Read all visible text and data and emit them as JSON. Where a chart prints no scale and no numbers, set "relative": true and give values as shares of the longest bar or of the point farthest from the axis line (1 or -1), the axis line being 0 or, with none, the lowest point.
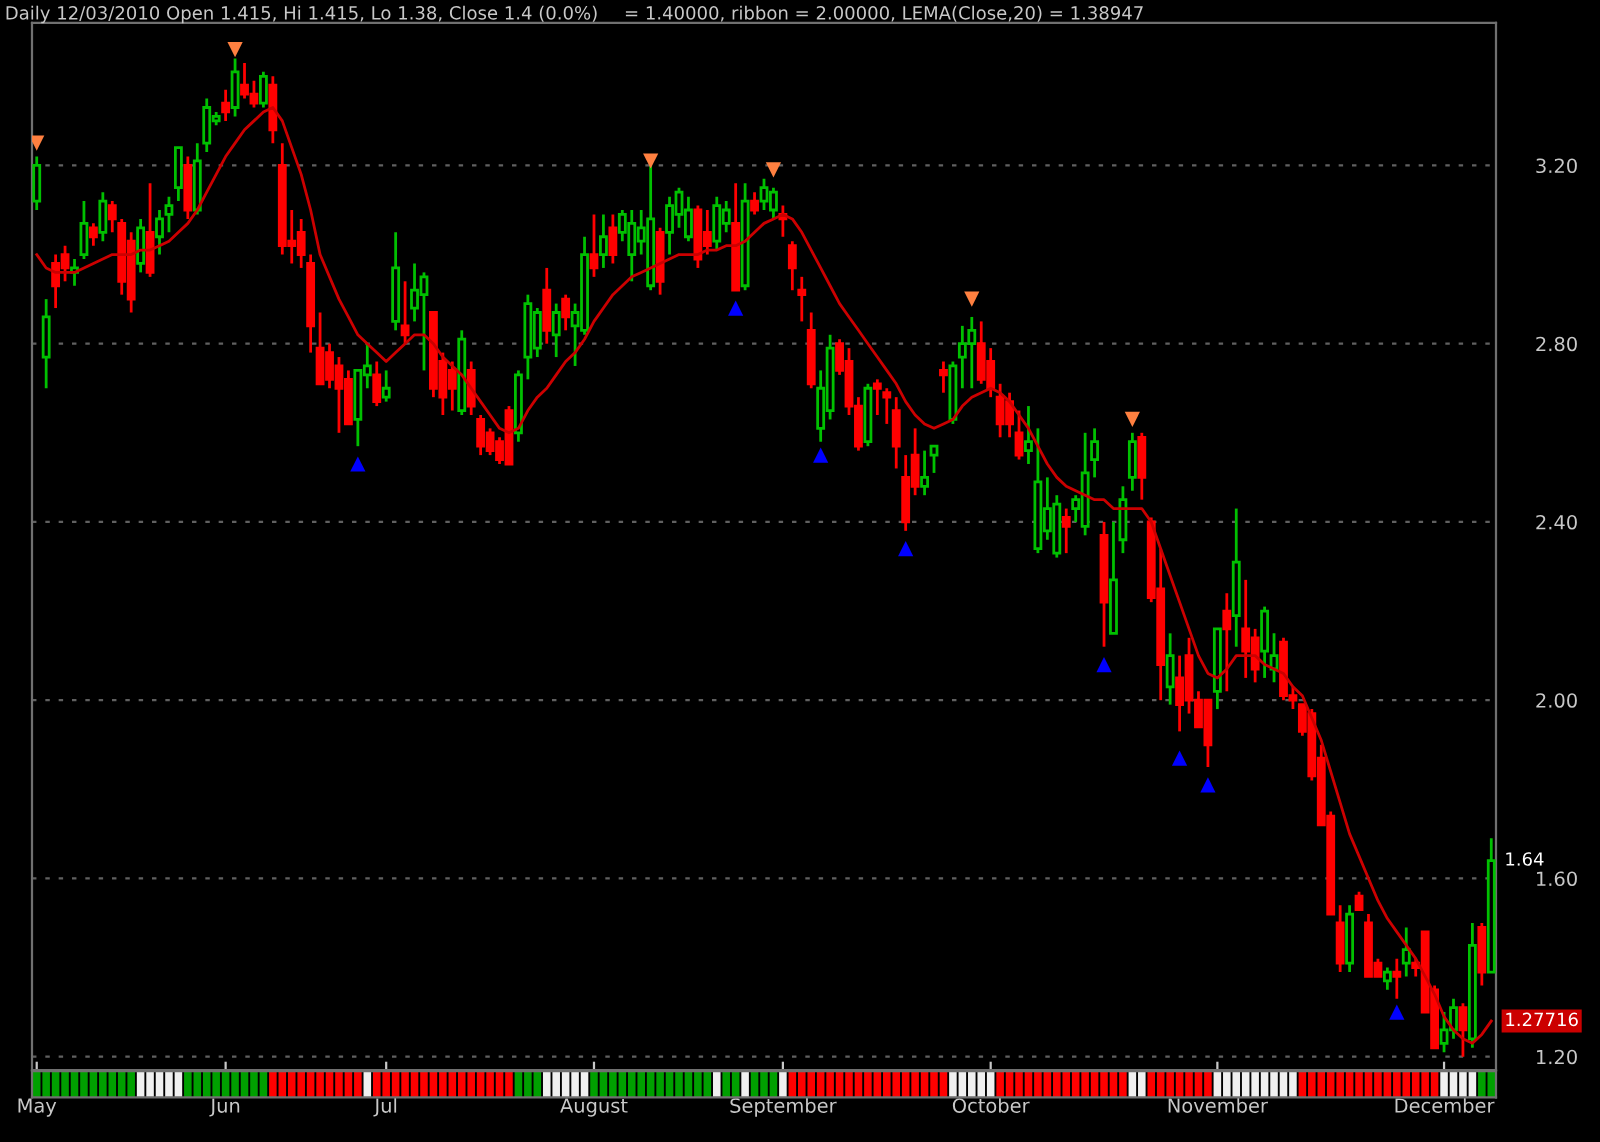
{
  "chart_data": [
    {
      "type": "candlestick",
      "title": "Daily 12/03/2010 Open 1.415, Hi 1.415, Lo 1.38, Close 1.4 (0.0%)",
      "subtitle": "= 1.40000, ribbon = 2.00000, LEMA(Close,20) = 1.38947",
      "categories": [
        "May",
        null,
        null,
        null,
        null,
        null,
        null,
        null,
        null,
        null,
        null,
        null,
        null,
        null,
        null,
        null,
        null,
        null,
        null,
        null,
        "Jun",
        null,
        null,
        null,
        null,
        null,
        null,
        null,
        null,
        null,
        null,
        null,
        null,
        null,
        null,
        null,
        null,
        "Jul",
        null,
        null,
        null,
        null,
        null,
        null,
        null,
        null,
        null,
        null,
        null,
        null,
        null,
        null,
        null,
        null,
        null,
        null,
        null,
        null,
        null,
        "August",
        null,
        null,
        null,
        null,
        null,
        null,
        null,
        null,
        null,
        null,
        null,
        null,
        null,
        null,
        null,
        null,
        null,
        null,
        null,
        "September",
        null,
        null,
        null,
        null,
        null,
        null,
        null,
        null,
        null,
        null,
        null,
        null,
        null,
        null,
        null,
        null,
        null,
        null,
        null,
        null,
        null,
        "October",
        null,
        null,
        null,
        null,
        null,
        null,
        null,
        null,
        null,
        null,
        null,
        null,
        null,
        null,
        null,
        null,
        null,
        null,
        null,
        null,
        null,
        null,
        null,
        "November",
        null,
        null,
        null,
        null,
        null,
        null,
        null,
        null,
        null,
        null,
        null,
        null,
        null,
        null,
        null,
        null,
        null,
        null,
        null,
        null,
        null,
        null,
        null,
        "December",
        null,
        null,
        null,
        null,
        null
      ],
      "ohlc": [
        [
          3.12,
          3.22,
          3.1,
          3.2
        ],
        [
          2.77,
          2.9,
          2.7,
          2.86
        ],
        [
          2.98,
          3.0,
          2.88,
          2.93
        ],
        [
          3.0,
          3.02,
          2.94,
          2.97
        ],
        [
          2.96,
          2.99,
          2.93,
          2.97
        ],
        [
          3.0,
          3.12,
          2.99,
          3.07
        ],
        [
          3.06,
          3.07,
          3.02,
          3.04
        ],
        [
          3.05,
          3.14,
          3.03,
          3.12
        ],
        [
          3.11,
          3.12,
          3.05,
          3.08
        ],
        [
          3.07,
          3.08,
          2.91,
          2.94
        ],
        [
          3.03,
          3.05,
          2.87,
          2.9
        ],
        [
          2.98,
          3.08,
          2.96,
          3.06
        ],
        [
          3.05,
          3.16,
          2.95,
          2.96
        ],
        [
          3.04,
          3.1,
          3.0,
          3.08
        ],
        [
          3.09,
          3.13,
          3.05,
          3.11
        ],
        [
          3.15,
          3.24,
          3.12,
          3.24
        ],
        [
          3.2,
          3.22,
          3.08,
          3.1
        ],
        [
          3.1,
          3.25,
          3.09,
          3.21
        ],
        [
          3.25,
          3.35,
          3.23,
          3.33
        ],
        [
          3.3,
          3.32,
          3.29,
          3.31
        ],
        [
          3.34,
          3.37,
          3.3,
          3.32
        ],
        [
          3.33,
          3.44,
          3.31,
          3.41
        ],
        [
          3.38,
          3.43,
          3.35,
          3.36
        ],
        [
          3.36,
          3.39,
          3.33,
          3.34
        ],
        [
          3.34,
          3.41,
          3.33,
          3.4
        ],
        [
          3.38,
          3.4,
          3.25,
          3.28
        ],
        [
          3.2,
          3.25,
          3.0,
          3.02
        ],
        [
          3.03,
          3.1,
          2.98,
          3.02
        ],
        [
          3.05,
          3.08,
          2.97,
          3.0
        ],
        [
          2.98,
          3.0,
          2.78,
          2.84
        ],
        [
          2.79,
          2.87,
          2.71,
          2.71
        ],
        [
          2.78,
          2.8,
          2.7,
          2.72
        ],
        [
          2.75,
          2.77,
          2.6,
          2.7
        ],
        [
          2.72,
          2.74,
          2.62,
          2.62
        ],
        [
          2.63,
          2.74,
          2.57,
          2.74
        ],
        [
          2.73,
          2.8,
          2.7,
          2.75
        ],
        [
          2.73,
          2.76,
          2.66,
          2.67
        ],
        [
          2.68,
          2.74,
          2.67,
          2.7
        ],
        [
          2.85,
          3.05,
          2.83,
          2.97
        ],
        [
          2.84,
          2.94,
          2.8,
          2.82
        ],
        [
          2.88,
          2.98,
          2.85,
          2.92
        ],
        [
          2.91,
          2.96,
          2.74,
          2.95
        ],
        [
          2.87,
          2.87,
          2.68,
          2.7
        ],
        [
          2.76,
          2.78,
          2.64,
          2.68
        ],
        [
          2.74,
          2.76,
          2.65,
          2.7
        ],
        [
          2.65,
          2.83,
          2.64,
          2.81
        ],
        [
          2.74,
          2.76,
          2.64,
          2.66
        ],
        [
          2.63,
          2.64,
          2.55,
          2.57
        ],
        [
          2.6,
          2.61,
          2.55,
          2.56
        ],
        [
          2.58,
          2.59,
          2.53,
          2.54
        ],
        [
          2.65,
          2.66,
          2.53,
          2.53
        ],
        [
          2.6,
          2.74,
          2.58,
          2.73
        ],
        [
          2.77,
          2.91,
          2.72,
          2.89
        ],
        [
          2.79,
          2.88,
          2.77,
          2.87
        ],
        [
          2.92,
          2.97,
          2.8,
          2.83
        ],
        [
          2.82,
          2.89,
          2.77,
          2.87
        ],
        [
          2.9,
          2.91,
          2.83,
          2.86
        ],
        [
          2.84,
          2.89,
          2.75,
          2.87
        ],
        [
          2.83,
          3.04,
          2.82,
          3.0
        ],
        [
          3.0,
          3.09,
          2.95,
          2.97
        ],
        [
          3.0,
          3.09,
          2.97,
          3.04
        ],
        [
          3.06,
          3.09,
          2.98,
          3.0
        ],
        [
          3.05,
          3.1,
          3.03,
          3.09
        ],
        [
          3.0,
          3.1,
          2.94,
          3.07
        ],
        [
          3.03,
          3.1,
          3.0,
          3.06
        ],
        [
          2.93,
          3.2,
          2.92,
          3.08
        ],
        [
          3.05,
          3.06,
          2.91,
          2.94
        ],
        [
          3.05,
          3.13,
          3.0,
          3.11
        ],
        [
          3.09,
          3.15,
          3.06,
          3.14
        ],
        [
          3.04,
          3.13,
          3.03,
          3.1
        ],
        [
          3.1,
          3.11,
          2.97,
          2.99
        ],
        [
          3.05,
          3.1,
          3.0,
          3.02
        ],
        [
          3.03,
          3.13,
          3.01,
          3.11
        ],
        [
          3.07,
          3.12,
          3.05,
          3.1
        ],
        [
          3.07,
          3.16,
          2.92,
          2.92
        ],
        [
          2.93,
          3.16,
          2.92,
          3.12
        ],
        [
          3.12,
          3.14,
          3.09,
          3.1
        ],
        [
          3.12,
          3.17,
          3.1,
          3.15
        ],
        [
          3.1,
          3.15,
          3.08,
          3.14
        ],
        [
          3.09,
          3.11,
          3.04,
          3.08
        ],
        [
          3.02,
          3.03,
          2.92,
          2.97
        ],
        [
          2.92,
          2.95,
          2.85,
          2.91
        ],
        [
          2.83,
          2.87,
          2.7,
          2.71
        ],
        [
          2.61,
          2.74,
          2.58,
          2.7
        ],
        [
          2.65,
          2.82,
          2.63,
          2.79
        ],
        [
          2.8,
          2.81,
          2.73,
          2.74
        ],
        [
          2.76,
          2.79,
          2.64,
          2.66
        ],
        [
          2.66,
          2.68,
          2.56,
          2.57
        ],
        [
          2.58,
          2.71,
          2.57,
          2.7
        ],
        [
          2.71,
          2.72,
          2.64,
          2.7
        ],
        [
          2.69,
          2.7,
          2.62,
          2.68
        ],
        [
          2.65,
          2.68,
          2.52,
          2.57
        ],
        [
          2.5,
          2.55,
          2.38,
          2.4
        ],
        [
          2.55,
          2.61,
          2.46,
          2.48
        ],
        [
          2.48,
          2.56,
          2.46,
          2.5
        ],
        [
          2.55,
          2.57,
          2.51,
          2.57
        ],
        [
          2.74,
          2.76,
          2.69,
          2.73
        ],
        [
          2.63,
          2.76,
          2.62,
          2.75
        ],
        [
          2.77,
          2.84,
          2.7,
          2.8
        ],
        [
          2.8,
          2.86,
          2.7,
          2.83
        ],
        [
          2.8,
          2.85,
          2.71,
          2.72
        ],
        [
          2.76,
          2.79,
          2.68,
          2.7
        ],
        [
          2.68,
          2.71,
          2.59,
          2.62
        ],
        [
          2.67,
          2.69,
          2.59,
          2.62
        ],
        [
          2.6,
          2.65,
          2.54,
          2.55
        ],
        [
          2.56,
          2.66,
          2.53,
          2.58
        ],
        [
          2.34,
          2.61,
          2.33,
          2.49
        ],
        [
          2.38,
          2.5,
          2.36,
          2.43
        ],
        [
          2.33,
          2.46,
          2.32,
          2.44
        ],
        [
          2.41,
          2.43,
          2.33,
          2.39
        ],
        [
          2.43,
          2.46,
          2.4,
          2.45
        ],
        [
          2.39,
          2.6,
          2.37,
          2.51
        ],
        [
          2.54,
          2.61,
          2.5,
          2.58
        ],
        [
          2.37,
          2.4,
          2.12,
          2.22
        ],
        [
          2.15,
          2.4,
          2.15,
          2.27
        ],
        [
          2.36,
          2.48,
          2.33,
          2.45
        ],
        [
          2.5,
          2.6,
          2.47,
          2.58
        ],
        [
          2.59,
          2.6,
          2.45,
          2.5
        ],
        [
          2.4,
          2.41,
          2.22,
          2.23
        ],
        [
          2.25,
          2.34,
          2.0,
          2.08
        ],
        [
          2.03,
          2.15,
          1.99,
          2.1
        ],
        [
          2.05,
          2.1,
          1.93,
          1.99
        ],
        [
          2.1,
          2.14,
          1.97,
          2.0
        ],
        [
          2.0,
          2.02,
          1.94,
          1.94
        ],
        [
          2.0,
          2.0,
          1.85,
          1.9
        ],
        [
          2.02,
          2.16,
          1.98,
          2.16
        ],
        [
          2.2,
          2.24,
          2.02,
          2.16
        ],
        [
          2.19,
          2.43,
          2.12,
          2.31
        ],
        [
          2.16,
          2.27,
          2.05,
          2.11
        ],
        [
          2.14,
          2.16,
          2.04,
          2.07
        ],
        [
          2.11,
          2.21,
          2.05,
          2.2
        ],
        [
          2.07,
          2.15,
          2.04,
          2.1
        ],
        [
          2.13,
          2.14,
          2.0,
          2.01
        ],
        [
          2.01,
          2.03,
          1.98,
          2.0
        ],
        [
          1.99,
          1.99,
          1.92,
          1.93
        ],
        [
          1.97,
          1.98,
          1.82,
          1.83
        ],
        [
          1.87,
          1.9,
          1.72,
          1.72
        ],
        [
          1.74,
          1.75,
          1.52,
          1.52
        ],
        [
          1.5,
          1.54,
          1.39,
          1.41
        ],
        [
          1.41,
          1.54,
          1.39,
          1.52
        ],
        [
          1.56,
          1.57,
          1.53,
          1.53
        ],
        [
          1.5,
          1.52,
          1.38,
          1.38
        ],
        [
          1.41,
          1.42,
          1.38,
          1.38
        ],
        [
          1.37,
          1.4,
          1.35,
          1.39
        ],
        [
          1.39,
          1.42,
          1.33,
          1.38
        ],
        [
          1.41,
          1.49,
          1.38,
          1.44
        ],
        [
          1.41,
          1.42,
          1.38,
          1.4
        ],
        [
          1.48,
          1.48,
          1.3,
          1.3
        ],
        [
          1.35,
          1.36,
          1.22,
          1.22
        ],
        [
          1.23,
          1.3,
          1.21,
          1.26
        ],
        [
          1.26,
          1.33,
          1.24,
          1.31
        ],
        [
          1.31,
          1.32,
          1.2,
          1.26
        ],
        [
          1.24,
          1.5,
          1.22,
          1.45
        ],
        [
          1.49,
          1.5,
          1.36,
          1.39
        ],
        [
          1.39,
          1.69,
          1.39,
          1.64
        ]
      ],
      "colors": [
        "#00c000",
        "#00c000",
        "#ff0000",
        "#ff0000",
        "#00c000",
        "#00c000",
        "#ff0000",
        "#00c000",
        "#ff0000",
        "#ff0000",
        "#ff0000",
        "#00c000",
        "#ff0000",
        "#00c000",
        "#00c000",
        "#00c000",
        "#ff0000",
        "#00c000",
        "#00c000",
        "#00c000",
        "#ff0000",
        "#00c000",
        "#ff0000",
        "#ff0000",
        "#00c000",
        "#ff0000",
        "#ff0000",
        "#ff0000",
        "#ff0000",
        "#ff0000",
        "#ff0000",
        "#ff0000",
        "#ff0000",
        "#ff0000",
        "#00c000",
        "#00c000",
        "#ff0000",
        "#00c000",
        "#00c000",
        "#ff0000",
        "#00c000",
        "#00c000",
        "#ff0000",
        "#ff0000",
        "#ff0000",
        "#00c000",
        "#ff0000",
        "#ff0000",
        "#ff0000",
        "#ff0000",
        "#ff0000",
        "#00c000",
        "#00c000",
        "#00c000",
        "#ff0000",
        "#00c000",
        "#ff0000",
        "#00c000",
        "#00c000",
        "#ff0000",
        "#00c000",
        "#ff0000",
        "#00c000",
        "#00c000",
        "#00c000",
        "#00c000",
        "#ff0000",
        "#00c000",
        "#00c000",
        "#00c000",
        "#ff0000",
        "#ff0000",
        "#00c000",
        "#00c000",
        "#ff0000",
        "#00c000",
        "#ff0000",
        "#00c000",
        "#00c000",
        "#ff0000",
        "#ff0000",
        "#ff0000",
        "#ff0000",
        "#00c000",
        "#00c000",
        "#ff0000",
        "#ff0000",
        "#ff0000",
        "#00c000",
        "#ff0000",
        "#ff0000",
        "#ff0000",
        "#ff0000",
        "#ff0000",
        "#00c000",
        "#00c000",
        "#ff0000",
        "#00c000",
        "#00c000",
        "#00c000",
        "#ff0000",
        "#ff0000",
        "#ff0000",
        "#ff0000",
        "#ff0000",
        "#00c000",
        "#00c000",
        "#00c000",
        "#00c000",
        "#ff0000",
        "#00c000",
        "#00c000",
        "#00c000",
        "#ff0000",
        "#00c000",
        "#00c000",
        "#00c000",
        "#ff0000",
        "#ff0000",
        "#ff0000",
        "#00c000",
        "#ff0000",
        "#ff0000",
        "#ff0000",
        "#ff0000",
        "#00c000",
        "#ff0000",
        "#00c000",
        "#ff0000",
        "#ff0000",
        "#00c000",
        "#00c000",
        "#ff0000",
        "#ff0000",
        "#ff0000",
        "#ff0000",
        "#ff0000",
        "#ff0000",
        "#ff0000",
        "#00c000",
        "#ff0000",
        "#ff0000",
        "#ff0000",
        "#00c000",
        "#ff0000",
        "#00c000",
        "#ff0000",
        "#ff0000",
        "#ff0000",
        "#00c000",
        "#00c000",
        "#ff0000",
        "#00c000",
        "#ff0000",
        "#00c000"
      ],
      "series": [
        {
          "type": "line",
          "color": "#cc0000",
          "line_style": "solid",
          "values": [
            3.0,
            2.97,
            2.96,
            2.96,
            2.96,
            2.97,
            2.98,
            2.99,
            3.0,
            3.0,
            3.0,
            3.01,
            3.01,
            3.02,
            3.03,
            3.05,
            3.07,
            3.1,
            3.14,
            3.18,
            3.22,
            3.25,
            3.28,
            3.3,
            3.32,
            3.33,
            3.3,
            3.24,
            3.18,
            3.1,
            3.0,
            2.95,
            2.9,
            2.86,
            2.82,
            2.8,
            2.78,
            2.76,
            2.78,
            2.8,
            2.82,
            2.82,
            2.8,
            2.77,
            2.75,
            2.73,
            2.7,
            2.67,
            2.64,
            2.61,
            2.6,
            2.61,
            2.65,
            2.68,
            2.7,
            2.73,
            2.76,
            2.78,
            2.81,
            2.85,
            2.88,
            2.91,
            2.93,
            2.95,
            2.96,
            2.97,
            2.98,
            2.99,
            3.0,
            3.0,
            3.0,
            3.01,
            3.01,
            3.02,
            3.02,
            3.03,
            3.05,
            3.07,
            3.08,
            3.09,
            3.08,
            3.05,
            3.01,
            2.97,
            2.93,
            2.89,
            2.86,
            2.83,
            2.8,
            2.77,
            2.74,
            2.71,
            2.67,
            2.64,
            2.62,
            2.61,
            2.62,
            2.63,
            2.66,
            2.68,
            2.69,
            2.7,
            2.69,
            2.67,
            2.64,
            2.61,
            2.57,
            2.53,
            2.5,
            2.48,
            2.47,
            2.46,
            2.45,
            2.45,
            2.43,
            2.43,
            2.43,
            2.43,
            2.4,
            2.34,
            2.28,
            2.22,
            2.16,
            2.1,
            2.06,
            2.05,
            2.07,
            2.1,
            2.1,
            2.1,
            2.08,
            2.07,
            2.06,
            2.03,
            2.01,
            1.96,
            1.91,
            1.84,
            1.77,
            1.7,
            1.65,
            1.6,
            1.55,
            1.51,
            1.48,
            1.45,
            1.42,
            1.38,
            1.34,
            1.29,
            1.26,
            1.24,
            1.23,
            1.25,
            1.28
          ]
        },
        {
          "type": "scatter",
          "marker": "triangle",
          "color": "#ff8040",
          "values": [
            3.25,
            null,
            null,
            null,
            null,
            null,
            null,
            null,
            null,
            null,
            null,
            null,
            null,
            null,
            null,
            null,
            null,
            null,
            null,
            null,
            null,
            3.46,
            null,
            null,
            null,
            null,
            null,
            null,
            null,
            null,
            null,
            null,
            null,
            null,
            null,
            null,
            null,
            null,
            null,
            null,
            null,
            null,
            null,
            null,
            null,
            null,
            null,
            null,
            null,
            null,
            null,
            null,
            null,
            null,
            null,
            null,
            null,
            null,
            null,
            null,
            null,
            null,
            null,
            null,
            null,
            3.21,
            null,
            null,
            null,
            null,
            null,
            null,
            null,
            null,
            null,
            null,
            null,
            null,
            3.19,
            null,
            null,
            null,
            null,
            null,
            null,
            null,
            null,
            null,
            null,
            null,
            null,
            null,
            null,
            null,
            null,
            null,
            null,
            null,
            null,
            2.9,
            null,
            null,
            null,
            null,
            null,
            null,
            null,
            null,
            null,
            null,
            null,
            null,
            null,
            null,
            null,
            null,
            2.63,
            null,
            null,
            null,
            null,
            null,
            null,
            null,
            null,
            null,
            null,
            null,
            null,
            null,
            null,
            null,
            null,
            null,
            null,
            null,
            null,
            null,
            null,
            null,
            null,
            null,
            null,
            null,
            null,
            null,
            null,
            null,
            null,
            null,
            null,
            null,
            null,
            null,
            null
          ]
        },
        {
          "type": "scatter",
          "marker": "triangle",
          "color": "#0000ff",
          "values": [
            null,
            null,
            null,
            null,
            null,
            null,
            null,
            null,
            null,
            null,
            null,
            null,
            null,
            null,
            null,
            null,
            null,
            null,
            null,
            null,
            null,
            null,
            null,
            null,
            null,
            null,
            null,
            null,
            null,
            null,
            null,
            null,
            null,
            null,
            2.53,
            null,
            null,
            null,
            null,
            null,
            null,
            null,
            null,
            null,
            null,
            null,
            null,
            null,
            null,
            null,
            null,
            null,
            null,
            null,
            null,
            null,
            null,
            null,
            null,
            null,
            null,
            null,
            null,
            null,
            null,
            null,
            null,
            null,
            null,
            null,
            null,
            null,
            null,
            null,
            2.88,
            null,
            null,
            null,
            null,
            null,
            null,
            null,
            null,
            2.55,
            null,
            null,
            null,
            null,
            null,
            null,
            null,
            null,
            2.34,
            null,
            null,
            null,
            null,
            null,
            null,
            null,
            null,
            null,
            null,
            null,
            null,
            null,
            null,
            null,
            null,
            null,
            null,
            null,
            null,
            2.08,
            null,
            null,
            null,
            null,
            null,
            null,
            null,
            1.87,
            null,
            null,
            1.81,
            null,
            null,
            null,
            null,
            null,
            null,
            null,
            null,
            null,
            null,
            null,
            null,
            null,
            null,
            null,
            null,
            null,
            null,
            null,
            1.3,
            null,
            null,
            null,
            null,
            null,
            null,
            null,
            null,
            null,
            null
          ]
        }
      ],
      "ylim": [
        1.17,
        3.52
      ],
      "yticks": [
        {
          "value": 1.2,
          "label": "1.20"
        },
        {
          "value": 1.6,
          "label": "1.60"
        },
        {
          "value": 2.0,
          "label": "2.00"
        },
        {
          "value": 2.4,
          "label": "2.40"
        },
        {
          "value": 2.8,
          "label": "2.80"
        },
        {
          "value": 3.2,
          "label": "3.20"
        }
      ],
      "grid": "y",
      "annotations": [
        "1.64",
        "1.27716"
      ]
    },
    {
      "type": "bar",
      "relative": true,
      "categories": [
        null,
        null,
        null,
        null,
        null,
        null,
        null,
        null,
        null,
        null,
        null,
        null,
        null,
        null,
        null,
        null,
        null,
        null,
        null,
        null,
        null,
        null,
        null,
        null,
        null,
        null,
        null,
        null,
        null,
        null,
        null,
        null,
        null,
        null,
        null,
        null,
        null,
        null,
        null,
        null,
        null,
        null,
        null,
        null,
        null,
        null,
        null,
        null,
        null,
        null,
        null,
        null,
        null,
        null,
        null,
        null,
        null,
        null,
        null,
        null,
        null,
        null,
        null,
        null,
        null,
        null,
        null,
        null,
        null,
        null,
        null,
        null,
        null,
        null,
        null,
        null,
        null,
        null,
        null,
        null,
        null,
        null,
        null,
        null,
        null,
        null,
        null,
        null,
        null,
        null,
        null,
        null,
        null,
        null,
        null,
        null,
        null,
        null,
        null,
        null,
        null,
        null,
        null,
        null,
        null,
        null,
        null,
        null,
        null,
        null,
        null,
        null,
        null,
        null,
        null,
        null,
        null,
        null,
        null,
        null,
        null,
        null,
        null,
        null,
        null,
        null,
        null,
        null,
        null,
        null,
        null,
        null,
        null,
        null,
        null,
        null,
        null,
        null,
        null,
        null,
        null,
        null,
        null,
        null,
        null,
        null,
        null,
        null,
        null,
        null,
        null,
        null,
        null,
        null,
        null
      ],
      "values": [
        1,
        1,
        1,
        1,
        1,
        1,
        1,
        1,
        1,
        1,
        1,
        1,
        1,
        1,
        1,
        1,
        1,
        1,
        1,
        1,
        1,
        1,
        1,
        1,
        1,
        1,
        1,
        1,
        1,
        1,
        1,
        1,
        1,
        1,
        1,
        1,
        1,
        1,
        1,
        1,
        1,
        1,
        1,
        1,
        1,
        1,
        1,
        1,
        1,
        1,
        1,
        1,
        1,
        1,
        1,
        1,
        1,
        1,
        1,
        1,
        1,
        1,
        1,
        1,
        1,
        1,
        1,
        1,
        1,
        1,
        1,
        1,
        1,
        1,
        1,
        1,
        1,
        1,
        1,
        1,
        1,
        1,
        1,
        1,
        1,
        1,
        1,
        1,
        1,
        1,
        1,
        1,
        1,
        1,
        1,
        1,
        1,
        1,
        1,
        1,
        1,
        1,
        1,
        1,
        1,
        1,
        1,
        1,
        1,
        1,
        1,
        1,
        1,
        1,
        1,
        1,
        1,
        1,
        1,
        1,
        1,
        1,
        1,
        1,
        1,
        1,
        1,
        1,
        1,
        1,
        1,
        1,
        1,
        1,
        1,
        1,
        1,
        1,
        1,
        1,
        1,
        1,
        1,
        1,
        1,
        1,
        1,
        1,
        1,
        1,
        1,
        1,
        1,
        1,
        1
      ],
      "colors": [
        "#00a000",
        "#00a000",
        "#00a000",
        "#00a000",
        "#00a000",
        "#00a000",
        "#00a000",
        "#00a000",
        "#00a000",
        "#00a000",
        "#00a000",
        "#f0f0f0",
        "#f0f0f0",
        "#f0f0f0",
        "#f0f0f0",
        "#f0f0f0",
        "#00a000",
        "#00a000",
        "#00a000",
        "#00a000",
        "#00a000",
        "#00a000",
        "#00a000",
        "#00a000",
        "#00a000",
        "#ff0000",
        "#ff0000",
        "#ff0000",
        "#ff0000",
        "#ff0000",
        "#ff0000",
        "#ff0000",
        "#ff0000",
        "#ff0000",
        "#ff0000",
        "#f0f0f0",
        "#ff0000",
        "#ff0000",
        "#ff0000",
        "#ff0000",
        "#ff0000",
        "#ff0000",
        "#ff0000",
        "#ff0000",
        "#ff0000",
        "#ff0000",
        "#ff0000",
        "#ff0000",
        "#ff0000",
        "#ff0000",
        "#ff0000",
        "#00a000",
        "#00a000",
        "#00a000",
        "#f0f0f0",
        "#f0f0f0",
        "#f0f0f0",
        "#f0f0f0",
        "#f0f0f0",
        "#00a000",
        "#00a000",
        "#00a000",
        "#00a000",
        "#00a000",
        "#00a000",
        "#00a000",
        "#00a000",
        "#00a000",
        "#00a000",
        "#00a000",
        "#00a000",
        "#00a000",
        "#f0f0f0",
        "#00a000",
        "#00a000",
        "#f0f0f0",
        "#00a000",
        "#00a000",
        "#00a000",
        "#f0f0f0",
        "#ff0000",
        "#ff0000",
        "#ff0000",
        "#ff0000",
        "#ff0000",
        "#ff0000",
        "#ff0000",
        "#ff0000",
        "#ff0000",
        "#ff0000",
        "#ff0000",
        "#ff0000",
        "#ff0000",
        "#ff0000",
        "#ff0000",
        "#ff0000",
        "#ff0000",
        "#f0f0f0",
        "#f0f0f0",
        "#f0f0f0",
        "#f0f0f0",
        "#f0f0f0",
        "#ff0000",
        "#ff0000",
        "#ff0000",
        "#ff0000",
        "#ff0000",
        "#ff0000",
        "#ff0000",
        "#ff0000",
        "#ff0000",
        "#ff0000",
        "#ff0000",
        "#ff0000",
        "#ff0000",
        "#ff0000",
        "#f0f0f0",
        "#f0f0f0",
        "#ff0000",
        "#ff0000",
        "#ff0000",
        "#ff0000",
        "#ff0000",
        "#ff0000",
        "#ff0000",
        "#f0f0f0",
        "#f0f0f0",
        "#f0f0f0",
        "#f0f0f0",
        "#f0f0f0",
        "#f0f0f0",
        "#f0f0f0",
        "#f0f0f0",
        "#f0f0f0",
        "#ff0000",
        "#ff0000",
        "#ff0000",
        "#ff0000",
        "#ff0000",
        "#ff0000",
        "#ff0000",
        "#ff0000",
        "#ff0000",
        "#ff0000",
        "#ff0000",
        "#ff0000",
        "#ff0000",
        "#ff0000",
        "#ff0000",
        "#f0f0f0",
        "#f0f0f0",
        "#f0f0f0",
        "#f0f0f0",
        "#00a000",
        "#00a000"
      ]
    }
  ]
}
